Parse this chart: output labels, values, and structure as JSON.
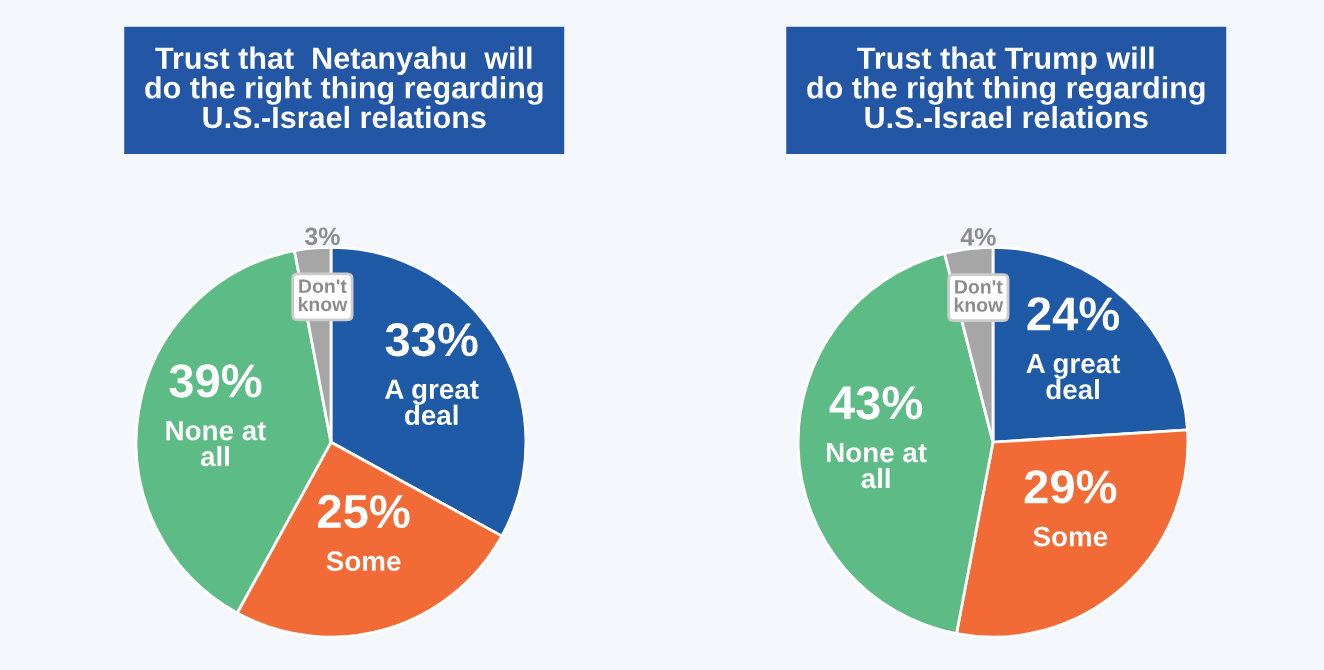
{
  "chart_data": [
    {
      "type": "pie",
      "title": "Trust that  Netanyahu  will\ndo the right thing regarding\nU.S.-Israel relations",
      "categories": [
        "A great\ndeal",
        "Some",
        "None at\nall",
        "Don't\nknow"
      ],
      "values": [
        33,
        25,
        39,
        3
      ],
      "value_labels": [
        "33%",
        "25%",
        "39%",
        "3%"
      ],
      "colors": [
        "#1f5aa6",
        "#f26a35",
        "#5dbb85",
        "#a6a6a6"
      ]
    },
    {
      "type": "pie",
      "title": "Trust that Trump will\ndo the right thing regarding\nU.S.-Israel relations",
      "categories": [
        "A great\ndeal",
        "Some",
        "None at\nall",
        "Don't\nknow"
      ],
      "values": [
        24,
        29,
        43,
        4
      ],
      "value_labels": [
        "24%",
        "29%",
        "43%",
        "4%"
      ],
      "colors": [
        "#1f5aa6",
        "#f26a35",
        "#5dbb85",
        "#a6a6a6"
      ]
    }
  ]
}
